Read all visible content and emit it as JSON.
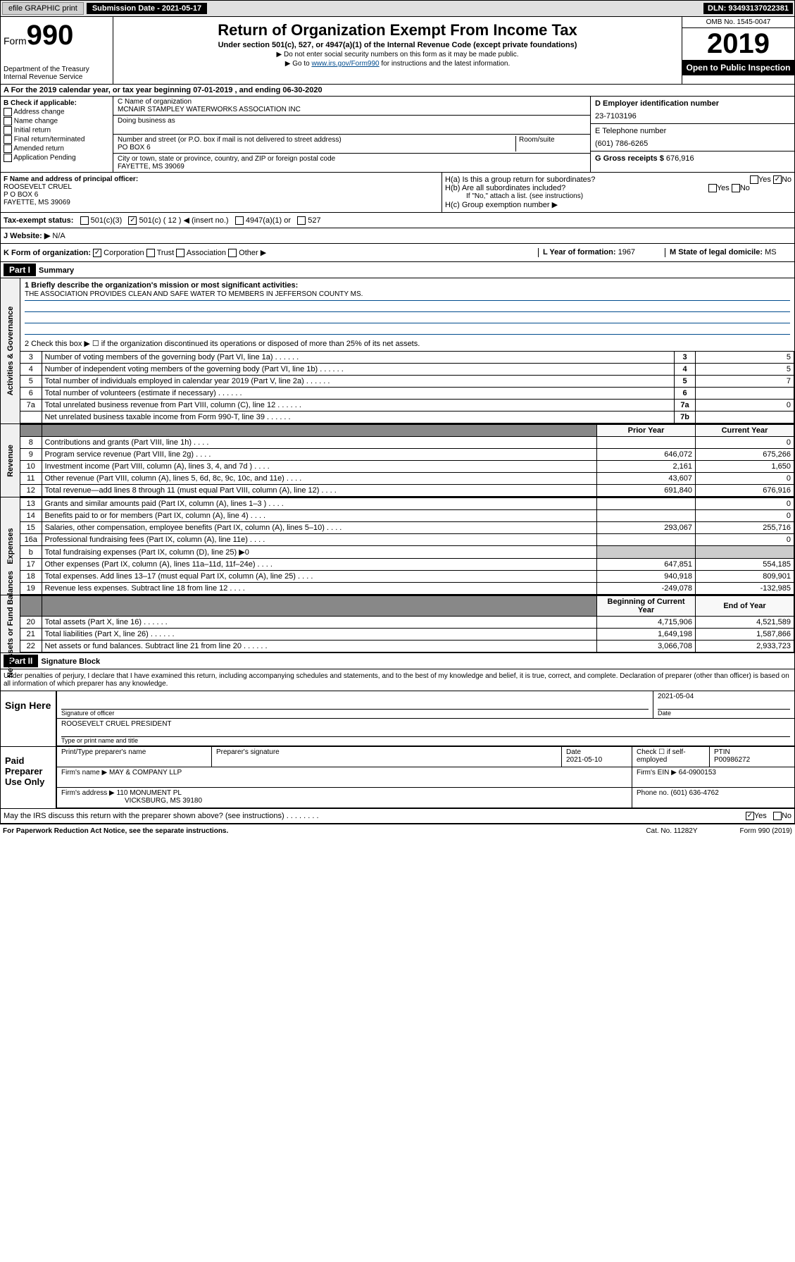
{
  "top": {
    "efile": "efile GRAPHIC print",
    "submission_label": "Submission Date - 2021-05-17",
    "dln": "DLN: 93493137022381"
  },
  "header": {
    "form_prefix": "Form",
    "form_number": "990",
    "dept": "Department of the Treasury\nInternal Revenue Service",
    "title": "Return of Organization Exempt From Income Tax",
    "subtitle": "Under section 501(c), 527, or 4947(a)(1) of the Internal Revenue Code (except private foundations)",
    "note1": "▶ Do not enter social security numbers on this form as it may be made public.",
    "note2_pre": "▶ Go to ",
    "note2_link": "www.irs.gov/Form990",
    "note2_post": " for instructions and the latest information.",
    "omb": "OMB No. 1545-0047",
    "year": "2019",
    "open": "Open to Public Inspection"
  },
  "row_a": "A For the 2019 calendar year, or tax year beginning 07-01-2019    , and ending 06-30-2020",
  "col_b": {
    "header": "B Check if applicable:",
    "opts": [
      "Address change",
      "Name change",
      "Initial return",
      "Final return/terminated",
      "Amended return",
      "Application Pending"
    ]
  },
  "col_c": {
    "name_label": "C Name of organization",
    "name": "MCNAIR STAMPLEY WATERWORKS ASSOCIATION INC",
    "dba_label": "Doing business as",
    "addr_label": "Number and street (or P.O. box if mail is not delivered to street address)",
    "room_label": "Room/suite",
    "addr": "PO BOX 6",
    "city_label": "City or town, state or province, country, and ZIP or foreign postal code",
    "city": "FAYETTE, MS  39069"
  },
  "col_d": {
    "ein_label": "D Employer identification number",
    "ein": "23-7103196",
    "tel_label": "E Telephone number",
    "tel": "(601) 786-6265",
    "gross_label": "G Gross receipts $",
    "gross": "676,916"
  },
  "row_f": {
    "label": "F Name and address of principal officer:",
    "name": "ROOSEVELT CRUEL",
    "addr": "P O BOX 6",
    "city": "FAYETTE, MS  39069"
  },
  "row_h": {
    "ha": "H(a) Is this a group return for subordinates?",
    "hb": "H(b) Are all subordinates included?",
    "hb_note": "If \"No,\" attach a list. (see instructions)",
    "hc": "H(c) Group exemption number ▶"
  },
  "tax_status": {
    "label": "Tax-exempt status:",
    "c3": "501(c)(3)",
    "c_other": "501(c) ( 12 ) ◀ (insert no.)",
    "a1": "4947(a)(1) or",
    "527": "527"
  },
  "row_j": {
    "label": "J Website: ▶",
    "val": "N/A"
  },
  "row_k": {
    "label": "K Form of organization:",
    "opts": [
      "Corporation",
      "Trust",
      "Association",
      "Other ▶"
    ],
    "l_label": "L Year of formation:",
    "l_val": "1967",
    "m_label": "M State of legal domicile:",
    "m_val": "MS"
  },
  "part1": {
    "header": "Part I",
    "title": "Summary",
    "q1": "1 Briefly describe the organization's mission or most significant activities:",
    "mission": "THE ASSOCIATION PROVIDES CLEAN AND SAFE WATER TO MEMBERS IN JEFFERSON COUNTY MS.",
    "q2": "2 Check this box ▶ ☐ if the organization discontinued its operations or disposed of more than 25% of its net assets.",
    "sections": {
      "governance": "Activities & Governance",
      "revenue": "Revenue",
      "expenses": "Expenses",
      "netassets": "Net Assets or Fund Balances"
    },
    "gov_rows": [
      {
        "n": "3",
        "d": "Number of voting members of the governing body (Part VI, line 1a)",
        "lbl": "3",
        "v": "5"
      },
      {
        "n": "4",
        "d": "Number of independent voting members of the governing body (Part VI, line 1b)",
        "lbl": "4",
        "v": "5"
      },
      {
        "n": "5",
        "d": "Total number of individuals employed in calendar year 2019 (Part V, line 2a)",
        "lbl": "5",
        "v": "7"
      },
      {
        "n": "6",
        "d": "Total number of volunteers (estimate if necessary)",
        "lbl": "6",
        "v": ""
      },
      {
        "n": "7a",
        "d": "Total unrelated business revenue from Part VIII, column (C), line 12",
        "lbl": "7a",
        "v": "0"
      },
      {
        "n": "",
        "d": "Net unrelated business taxable income from Form 990-T, line 39",
        "lbl": "7b",
        "v": ""
      }
    ],
    "col_headers": {
      "prior": "Prior Year",
      "current": "Current Year"
    },
    "rev_rows": [
      {
        "n": "8",
        "d": "Contributions and grants (Part VIII, line 1h)",
        "p": "",
        "c": "0"
      },
      {
        "n": "9",
        "d": "Program service revenue (Part VIII, line 2g)",
        "p": "646,072",
        "c": "675,266"
      },
      {
        "n": "10",
        "d": "Investment income (Part VIII, column (A), lines 3, 4, and 7d )",
        "p": "2,161",
        "c": "1,650"
      },
      {
        "n": "11",
        "d": "Other revenue (Part VIII, column (A), lines 5, 6d, 8c, 9c, 10c, and 11e)",
        "p": "43,607",
        "c": "0"
      },
      {
        "n": "12",
        "d": "Total revenue—add lines 8 through 11 (must equal Part VIII, column (A), line 12)",
        "p": "691,840",
        "c": "676,916"
      }
    ],
    "exp_rows": [
      {
        "n": "13",
        "d": "Grants and similar amounts paid (Part IX, column (A), lines 1–3 )",
        "p": "",
        "c": "0"
      },
      {
        "n": "14",
        "d": "Benefits paid to or for members (Part IX, column (A), line 4)",
        "p": "",
        "c": "0"
      },
      {
        "n": "15",
        "d": "Salaries, other compensation, employee benefits (Part IX, column (A), lines 5–10)",
        "p": "293,067",
        "c": "255,716"
      },
      {
        "n": "16a",
        "d": "Professional fundraising fees (Part IX, column (A), line 11e)",
        "p": "",
        "c": "0"
      },
      {
        "n": "b",
        "d": "Total fundraising expenses (Part IX, column (D), line 25) ▶0",
        "p": null,
        "c": null
      },
      {
        "n": "17",
        "d": "Other expenses (Part IX, column (A), lines 11a–11d, 11f–24e)",
        "p": "647,851",
        "c": "554,185"
      },
      {
        "n": "18",
        "d": "Total expenses. Add lines 13–17 (must equal Part IX, column (A), line 25)",
        "p": "940,918",
        "c": "809,901"
      },
      {
        "n": "19",
        "d": "Revenue less expenses. Subtract line 18 from line 12",
        "p": "-249,078",
        "c": "-132,985"
      }
    ],
    "net_headers": {
      "begin": "Beginning of Current Year",
      "end": "End of Year"
    },
    "net_rows": [
      {
        "n": "20",
        "d": "Total assets (Part X, line 16)",
        "p": "4,715,906",
        "c": "4,521,589"
      },
      {
        "n": "21",
        "d": "Total liabilities (Part X, line 26)",
        "p": "1,649,198",
        "c": "1,587,866"
      },
      {
        "n": "22",
        "d": "Net assets or fund balances. Subtract line 21 from line 20",
        "p": "3,066,708",
        "c": "2,933,723"
      }
    ]
  },
  "part2": {
    "header": "Part II",
    "title": "Signature Block",
    "declaration": "Under penalties of perjury, I declare that I have examined this return, including accompanying schedules and statements, and to the best of my knowledge and belief, it is true, correct, and complete. Declaration of preparer (other than officer) is based on all information of which preparer has any knowledge.",
    "sign_here": "Sign Here",
    "sig_date": "2021-05-04",
    "sig_officer": "Signature of officer",
    "date_label": "Date",
    "officer_name": "ROOSEVELT CRUEL PRESIDENT",
    "name_title": "Type or print name and title",
    "paid": "Paid Preparer Use Only",
    "prep_name_label": "Print/Type preparer's name",
    "prep_sig_label": "Preparer's signature",
    "prep_date": "2021-05-10",
    "self_emp": "Check ☐ if self-employed",
    "ptin_label": "PTIN",
    "ptin": "P00986272",
    "firm_name_label": "Firm's name    ▶",
    "firm_name": "MAY & COMPANY LLP",
    "firm_ein_label": "Firm's EIN ▶",
    "firm_ein": "64-0900153",
    "firm_addr_label": "Firm's address ▶",
    "firm_addr": "110 MONUMENT PL",
    "firm_city": "VICKSBURG, MS  39180",
    "phone_label": "Phone no.",
    "phone": "(601) 636-4762",
    "discuss": "May the IRS discuss this return with the preparer shown above? (see instructions)",
    "yes": "Yes",
    "no": "No"
  },
  "footer": {
    "left": "For Paperwork Reduction Act Notice, see the separate instructions.",
    "mid": "Cat. No. 11282Y",
    "right": "Form 990 (2019)"
  }
}
